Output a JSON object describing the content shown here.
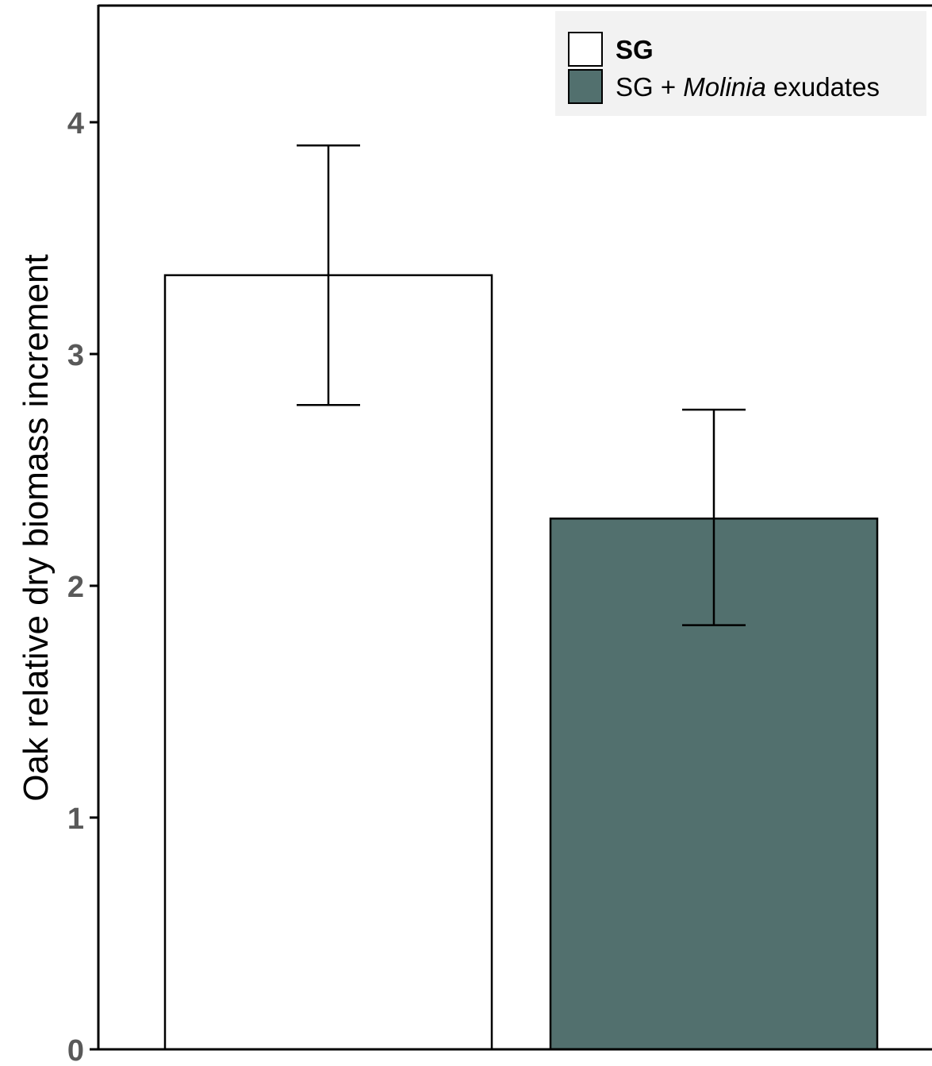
{
  "chart_data": {
    "type": "bar",
    "ylabel": "Oak relative dry biomass increment",
    "xlabel": "",
    "ylim": [
      0,
      4.5
    ],
    "yticks": [
      "0",
      "1",
      "2",
      "3",
      "4"
    ],
    "grid": false,
    "legend_position": "top-right",
    "series": [
      {
        "name": "SG",
        "value": 3.34,
        "error_low": 2.78,
        "error_high": 3.9,
        "color": "#ffffff"
      },
      {
        "name_parts": [
          "SG + ",
          "Molinia",
          " exudates"
        ],
        "value": 2.29,
        "error_low": 1.83,
        "error_high": 2.76,
        "color": "#52706e"
      }
    ]
  }
}
